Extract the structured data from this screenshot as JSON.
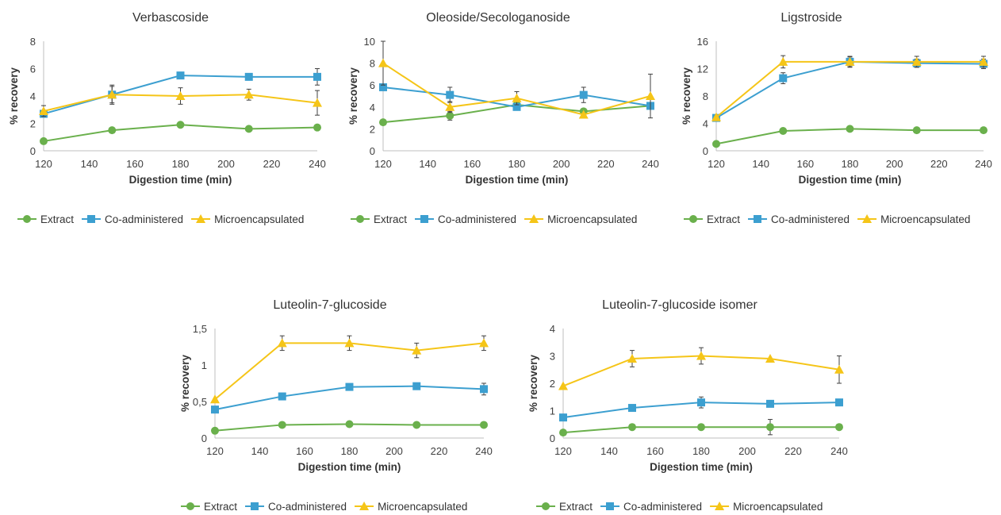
{
  "chart_data": [
    {
      "type": "line",
      "title": "Verbascoside",
      "xlabel": "Digestion time (min)",
      "ylabel": "% recovery",
      "x": [
        120,
        150,
        180,
        210,
        240
      ],
      "xticks": [
        "120",
        "140",
        "160",
        "180",
        "200",
        "220",
        "240"
      ],
      "yticks": [
        "0",
        "2",
        "4",
        "6",
        "8"
      ],
      "xlim": [
        120,
        240
      ],
      "ylim": [
        0,
        8
      ],
      "series": [
        {
          "name": "Extract",
          "values": [
            0.7,
            1.5,
            1.9,
            1.6,
            1.7
          ],
          "errors": [
            0,
            0,
            0,
            0,
            0
          ]
        },
        {
          "name": "Co-administered",
          "values": [
            2.7,
            4.1,
            5.5,
            5.4,
            5.4
          ],
          "errors": [
            0,
            0.7,
            0,
            0,
            0.6
          ]
        },
        {
          "name": "Microencapsulated",
          "values": [
            2.9,
            4.1,
            4.0,
            4.1,
            3.5
          ],
          "errors": [
            0.4,
            0.6,
            0.6,
            0.4,
            0.9
          ]
        }
      ]
    },
    {
      "type": "line",
      "title": "Oleoside/Secologanoside",
      "xlabel": "Digestion time (min)",
      "ylabel": "% recovery",
      "x": [
        120,
        150,
        180,
        210,
        240
      ],
      "xticks": [
        "120",
        "140",
        "160",
        "180",
        "200",
        "220",
        "240"
      ],
      "yticks": [
        "0",
        "2",
        "4",
        "6",
        "8",
        "10"
      ],
      "xlim": [
        120,
        240
      ],
      "ylim": [
        0,
        10
      ],
      "series": [
        {
          "name": "Extract",
          "values": [
            2.6,
            3.2,
            4.2,
            3.6,
            4.1
          ],
          "errors": [
            0,
            0.4,
            0,
            0,
            0
          ]
        },
        {
          "name": "Co-administered",
          "values": [
            5.8,
            5.1,
            4.0,
            5.1,
            4.1
          ],
          "errors": [
            0,
            0.7,
            0,
            0.7,
            0
          ]
        },
        {
          "name": "Microencapsulated",
          "values": [
            8.0,
            4.0,
            4.8,
            3.3,
            5.0
          ],
          "errors": [
            2.0,
            0.5,
            0.6,
            0,
            2.0
          ]
        }
      ]
    },
    {
      "type": "line",
      "title": "Ligstroside",
      "xlabel": "Digestion time (min)",
      "ylabel": "% recovery",
      "x": [
        120,
        150,
        180,
        210,
        240
      ],
      "xticks": [
        "120",
        "140",
        "160",
        "180",
        "200",
        "220",
        "240"
      ],
      "yticks": [
        "0",
        "4",
        "8",
        "12",
        "16"
      ],
      "xlim": [
        120,
        240
      ],
      "ylim": [
        0,
        16
      ],
      "series": [
        {
          "name": "Extract",
          "values": [
            1.0,
            2.9,
            3.2,
            3.0,
            3.0
          ],
          "errors": [
            0,
            0,
            0,
            0,
            0
          ]
        },
        {
          "name": "Co-administered",
          "values": [
            4.8,
            10.6,
            13.0,
            12.8,
            12.7
          ],
          "errors": [
            0,
            0.8,
            0.7,
            0.6,
            0.7
          ]
        },
        {
          "name": "Microencapsulated",
          "values": [
            4.9,
            13.0,
            13.0,
            13.0,
            13.0
          ],
          "errors": [
            0,
            0.9,
            0.8,
            0.8,
            0.8
          ]
        }
      ]
    },
    {
      "type": "line",
      "title": "Luteolin-7-glucoside",
      "xlabel": "Digestion time (min)",
      "ylabel": "% recovery",
      "x": [
        120,
        150,
        180,
        210,
        240
      ],
      "xticks": [
        "120",
        "140",
        "160",
        "180",
        "200",
        "220",
        "240"
      ],
      "yticks": [
        "0",
        "0,5",
        "1",
        "1,5"
      ],
      "xlim": [
        120,
        240
      ],
      "ylim": [
        0,
        1.5
      ],
      "series": [
        {
          "name": "Extract",
          "values": [
            0.1,
            0.18,
            0.19,
            0.18,
            0.18
          ],
          "errors": [
            0,
            0,
            0,
            0,
            0
          ]
        },
        {
          "name": "Co-administered",
          "values": [
            0.39,
            0.57,
            0.7,
            0.71,
            0.67
          ],
          "errors": [
            0,
            0,
            0,
            0,
            0.08
          ]
        },
        {
          "name": "Microencapsulated",
          "values": [
            0.53,
            1.3,
            1.3,
            1.2,
            1.3
          ],
          "errors": [
            0,
            0.1,
            0.1,
            0.1,
            0.1
          ]
        }
      ]
    },
    {
      "type": "line",
      "title": "Luteolin-7-glucoside isomer",
      "xlabel": "Digestion time (min)",
      "ylabel": "% recovery",
      "x": [
        120,
        150,
        180,
        210,
        240
      ],
      "xticks": [
        "120",
        "140",
        "160",
        "180",
        "200",
        "220",
        "240"
      ],
      "yticks": [
        "0",
        "1",
        "2",
        "3",
        "4"
      ],
      "xlim": [
        120,
        240
      ],
      "ylim": [
        0,
        4
      ],
      "series": [
        {
          "name": "Extract",
          "values": [
            0.2,
            0.4,
            0.4,
            0.4,
            0.4
          ],
          "errors": [
            0,
            0,
            0,
            0.28,
            0
          ]
        },
        {
          "name": "Co-administered",
          "values": [
            0.75,
            1.1,
            1.3,
            1.25,
            1.3
          ],
          "errors": [
            0,
            0,
            0.2,
            0,
            0
          ]
        },
        {
          "name": "Microencapsulated",
          "values": [
            1.9,
            2.9,
            3.0,
            2.9,
            2.5
          ],
          "errors": [
            0,
            0.3,
            0.3,
            0,
            0.5
          ]
        }
      ]
    }
  ],
  "colors": {
    "Extract": "#6ab04c",
    "Co-administered": "#3c9fd0",
    "Microencapsulated": "#f5c518",
    "axis": "#bfbfbf",
    "errorbar": "#404040"
  },
  "markers": {
    "Extract": "circle",
    "Co-administered": "square",
    "Microencapsulated": "triangle"
  }
}
